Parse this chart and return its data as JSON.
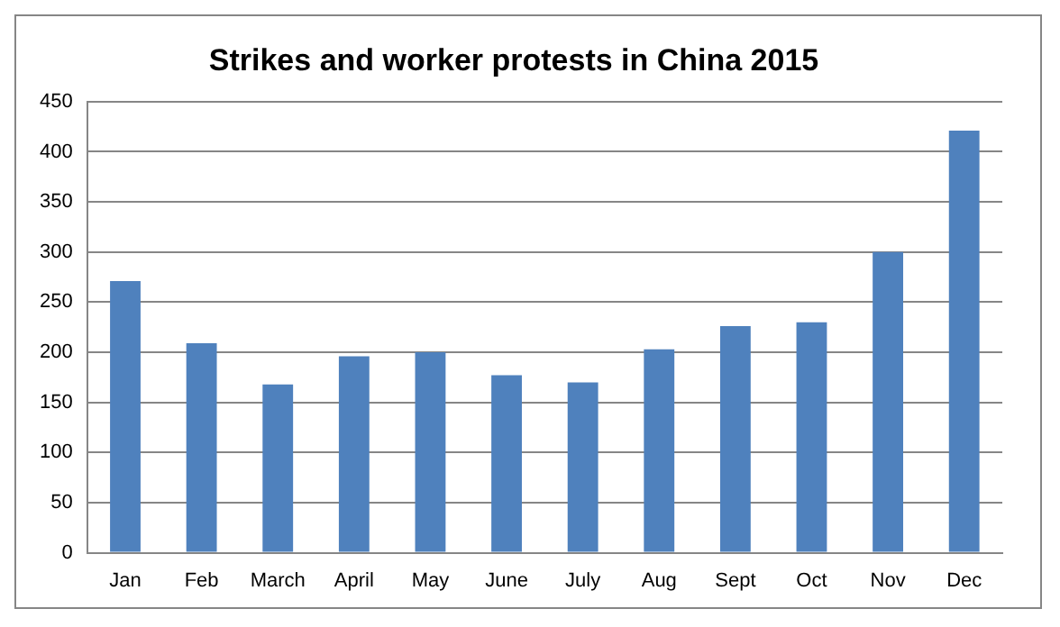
{
  "chart_data": {
    "type": "bar",
    "title": "Strikes and worker protests in China 2015",
    "categories": [
      "Jan",
      "Feb",
      "March",
      "April",
      "May",
      "June",
      "July",
      "Aug",
      "Sept",
      "Oct",
      "Nov",
      "Dec"
    ],
    "values": [
      271,
      209,
      168,
      196,
      200,
      177,
      170,
      203,
      226,
      230,
      300,
      421
    ],
    "color": "#4f81bd",
    "ylim": [
      0,
      450
    ],
    "yticks": [
      0,
      50,
      100,
      150,
      200,
      250,
      300,
      350,
      400,
      450
    ],
    "grid": "y"
  }
}
